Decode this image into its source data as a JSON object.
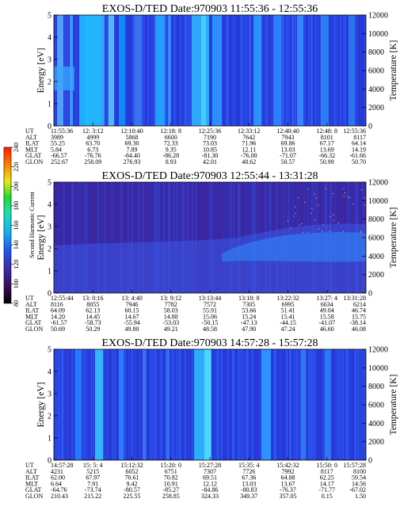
{
  "colorbar": {
    "label": "Second Harmonic Current",
    "ticks": [
      "80",
      "100",
      "120",
      "140",
      "160",
      "180",
      "200",
      "220",
      "240"
    ]
  },
  "table_labels": [
    "UT",
    "ALT",
    "ILAT",
    "MLT",
    "GLAT",
    "GLON"
  ],
  "chart_data": [
    {
      "type": "heatmap",
      "title": "EXOS-D/TED   Date:970903   11:55:36 - 12:55:36",
      "ylabel": "Energy [eV]",
      "y2label": "Temperature [K]",
      "ylim": [
        0,
        5
      ],
      "y2lim": [
        0,
        12000
      ],
      "yticks": [
        "0",
        "1",
        "2",
        "3",
        "4",
        "5"
      ],
      "y2ticks": [
        "0",
        "2000",
        "4000",
        "6000",
        "8000",
        "10000",
        "12000"
      ],
      "ephemeris": {
        "UT": [
          "11:55:36",
          "12: 3:12",
          "12:10:40",
          "12:18: 8",
          "12:25:36",
          "12:33:12",
          "12:40:40",
          "12:48: 8",
          "12:55:36"
        ],
        "ALT": [
          "3989",
          "4999",
          "5868",
          "6600",
          "7190",
          "7642",
          "7943",
          "8101",
          "8117"
        ],
        "ILAT": [
          "55.25",
          "63.70",
          "69.30",
          "72.33",
          "73.03",
          "71.96",
          "69.86",
          "67.17",
          "64.14"
        ],
        "MLT": [
          "5.84",
          "6.73",
          "7.89",
          "9.35",
          "10.85",
          "12.11",
          "13.03",
          "13.69",
          "14.19"
        ],
        "GLAT": [
          "-66.57",
          "-76.76",
          "-84.40",
          "-86.28",
          "-81.30",
          "-76.00",
          "-71.07",
          "-66.32",
          "-61.66"
        ],
        "GLON": [
          "252.67",
          "258.09",
          "276.93",
          "8.93",
          "42.01",
          "48.62",
          "50.57",
          "50.99",
          "50.70"
        ]
      }
    },
    {
      "type": "heatmap",
      "title": "EXOS-D/TED   Date:970903   12:55:44 - 13:31:28",
      "ylabel": "Energy [eV]",
      "y2label": "Temperature [K]",
      "ylim": [
        0,
        5
      ],
      "y2lim": [
        0,
        12000
      ],
      "yticks": [
        "0",
        "1",
        "2",
        "3",
        "4",
        "5"
      ],
      "y2ticks": [
        "0",
        "2000",
        "4000",
        "6000",
        "8000",
        "10000",
        "12000"
      ],
      "ephemeris": {
        "UT": [
          "12:55:44",
          "13: 0:16",
          "13: 4:40",
          "13: 9:12",
          "13:13:44",
          "13:18: 8",
          "13:22:32",
          "13:27: 4",
          "13:31:28"
        ],
        "ALT": [
          "8116",
          "8055",
          "7946",
          "7782",
          "7572",
          "7305",
          "6995",
          "6634",
          "6214"
        ],
        "ILAT": [
          "64.09",
          "62.13",
          "60.15",
          "58.03",
          "55.91",
          "53.66",
          "51.41",
          "49.04",
          "46.74"
        ],
        "MLT": [
          "14.20",
          "14.45",
          "14.67",
          "14.88",
          "15.06",
          "15.24",
          "15.41",
          "15.58",
          "15.75"
        ],
        "GLAT": [
          "-61.57",
          "-58.73",
          "-55.94",
          "-53.03",
          "-50.15",
          "-47.13",
          "-44.15",
          "-41.07",
          "-38.14"
        ],
        "GLON": [
          "50.69",
          "50.29",
          "49.80",
          "49.21",
          "48.58",
          "47.90",
          "47.24",
          "46.60",
          "46.08"
        ]
      }
    },
    {
      "type": "heatmap",
      "title": "EXOS-D/TED   Date:970903   14:57:28 - 15:57:28",
      "ylabel": "Energy [eV]",
      "y2label": "Temperature [K]",
      "ylim": [
        0,
        5
      ],
      "y2lim": [
        0,
        12000
      ],
      "yticks": [
        "0",
        "1",
        "2",
        "3",
        "4",
        "5"
      ],
      "y2ticks": [
        "0",
        "2000",
        "4000",
        "6000",
        "8000",
        "10000",
        "12000"
      ],
      "ephemeris": {
        "UT": [
          "14:57:28",
          "15: 5: 4",
          "15:12:32",
          "15:20: 0",
          "15:27:28",
          "15:35: 4",
          "15:42:32",
          "15:50: 0",
          "15:57:28"
        ],
        "ALT": [
          "4231",
          "5215",
          "6052",
          "6751",
          "7307",
          "7726",
          "7992",
          "8117",
          "8100"
        ],
        "ILAT": [
          "62.00",
          "67.97",
          "70.61",
          "70.82",
          "69.51",
          "67.36",
          "64.88",
          "62.25",
          "59.54"
        ],
        "MLT": [
          "6.64",
          "7.91",
          "9.42",
          "10.91",
          "12.12",
          "13.03",
          "13.67",
          "14.17",
          "14.56"
        ],
        "GLAT": [
          "-64.76",
          "-73.74",
          "-80.57",
          "-85.27",
          "-84.86",
          "-80.83",
          "-76.37",
          "-71.77",
          "-67.02"
        ],
        "GLON": [
          "210.43",
          "215.22",
          "225.55",
          "258.85",
          "324.33",
          "349.37",
          "357.05",
          "0.15",
          "1.50"
        ]
      }
    }
  ]
}
